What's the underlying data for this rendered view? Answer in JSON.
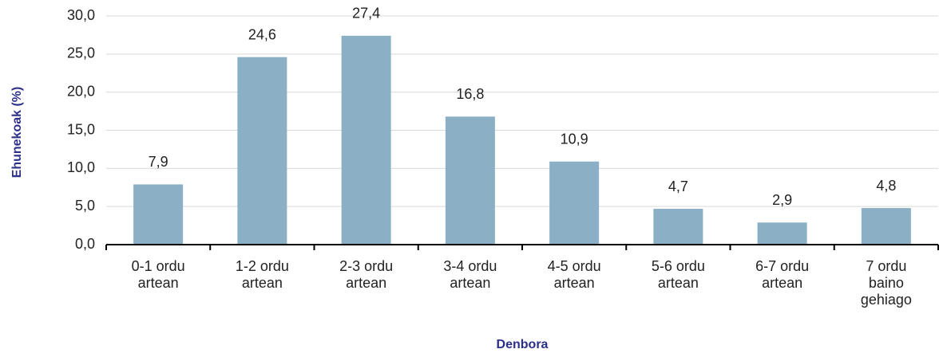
{
  "chart_data": {
    "type": "bar",
    "x_label": "Denbora",
    "y_label": "Ehunekoak (%)",
    "categories": [
      "0-1 ordu artean",
      "1-2 ordu artean",
      "2-3 ordu artean",
      "3-4 ordu artean",
      "4-5 ordu artean",
      "5-6 ordu artean",
      "6-7 ordu artean",
      "7 ordu baino gehiago"
    ],
    "values": [
      7.9,
      24.6,
      27.4,
      16.8,
      10.9,
      4.7,
      2.9,
      4.8
    ],
    "value_labels": [
      "7,9",
      "24,6",
      "27,4",
      "16,8",
      "10,9",
      "4,7",
      "2,9",
      "4,8"
    ],
    "color": "#8bb0c5",
    "ylim": [
      0,
      30
    ],
    "yticks": [
      {
        "value": 0,
        "label": "0,0"
      },
      {
        "value": 5,
        "label": "5,0"
      },
      {
        "value": 10,
        "label": "10,0"
      },
      {
        "value": 15,
        "label": "15,0"
      },
      {
        "value": 20,
        "label": "20,0"
      },
      {
        "value": 25,
        "label": "25,0"
      },
      {
        "value": 30,
        "label": "30,0"
      }
    ],
    "grid": true
  }
}
